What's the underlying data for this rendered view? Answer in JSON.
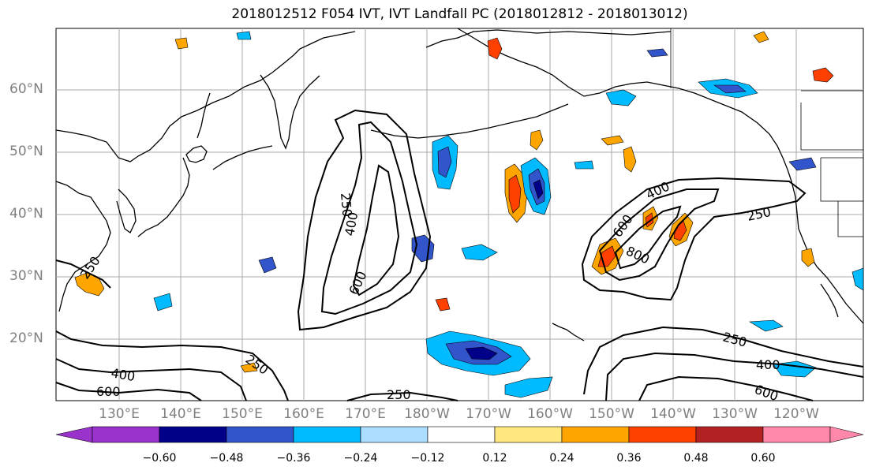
{
  "title": "2018012512 F054 IVT, IVT Landfall PC (2018012812 - 2018013012)",
  "lat_labels": [
    "60°N",
    "50°N",
    "40°N",
    "30°N",
    "20°N"
  ],
  "lon_labels": [
    "130°E",
    "140°E",
    "150°E",
    "160°E",
    "170°E",
    "180°W",
    "170°W",
    "160°W",
    "150°W",
    "140°W",
    "130°W",
    "120°W"
  ],
  "contour_levels": [
    "250",
    "400",
    "600",
    "800"
  ],
  "colorbar": {
    "tick_labels": [
      "−0.60",
      "−0.48",
      "−0.36",
      "−0.24",
      "−0.12",
      "0.12",
      "0.24",
      "0.36",
      "0.48",
      "0.60"
    ],
    "colors": [
      "#9933cc",
      "#000088",
      "#3355cc",
      "#00bbff",
      "#aaddff",
      "#ffffff",
      "#ffe97f",
      "#ffa500",
      "#ff4000",
      "#b22222",
      "#ff88aa"
    ]
  },
  "colors": {
    "grid": "#aaaaaa",
    "coast": "#000000",
    "axis_label": "#7f7f7f"
  }
}
